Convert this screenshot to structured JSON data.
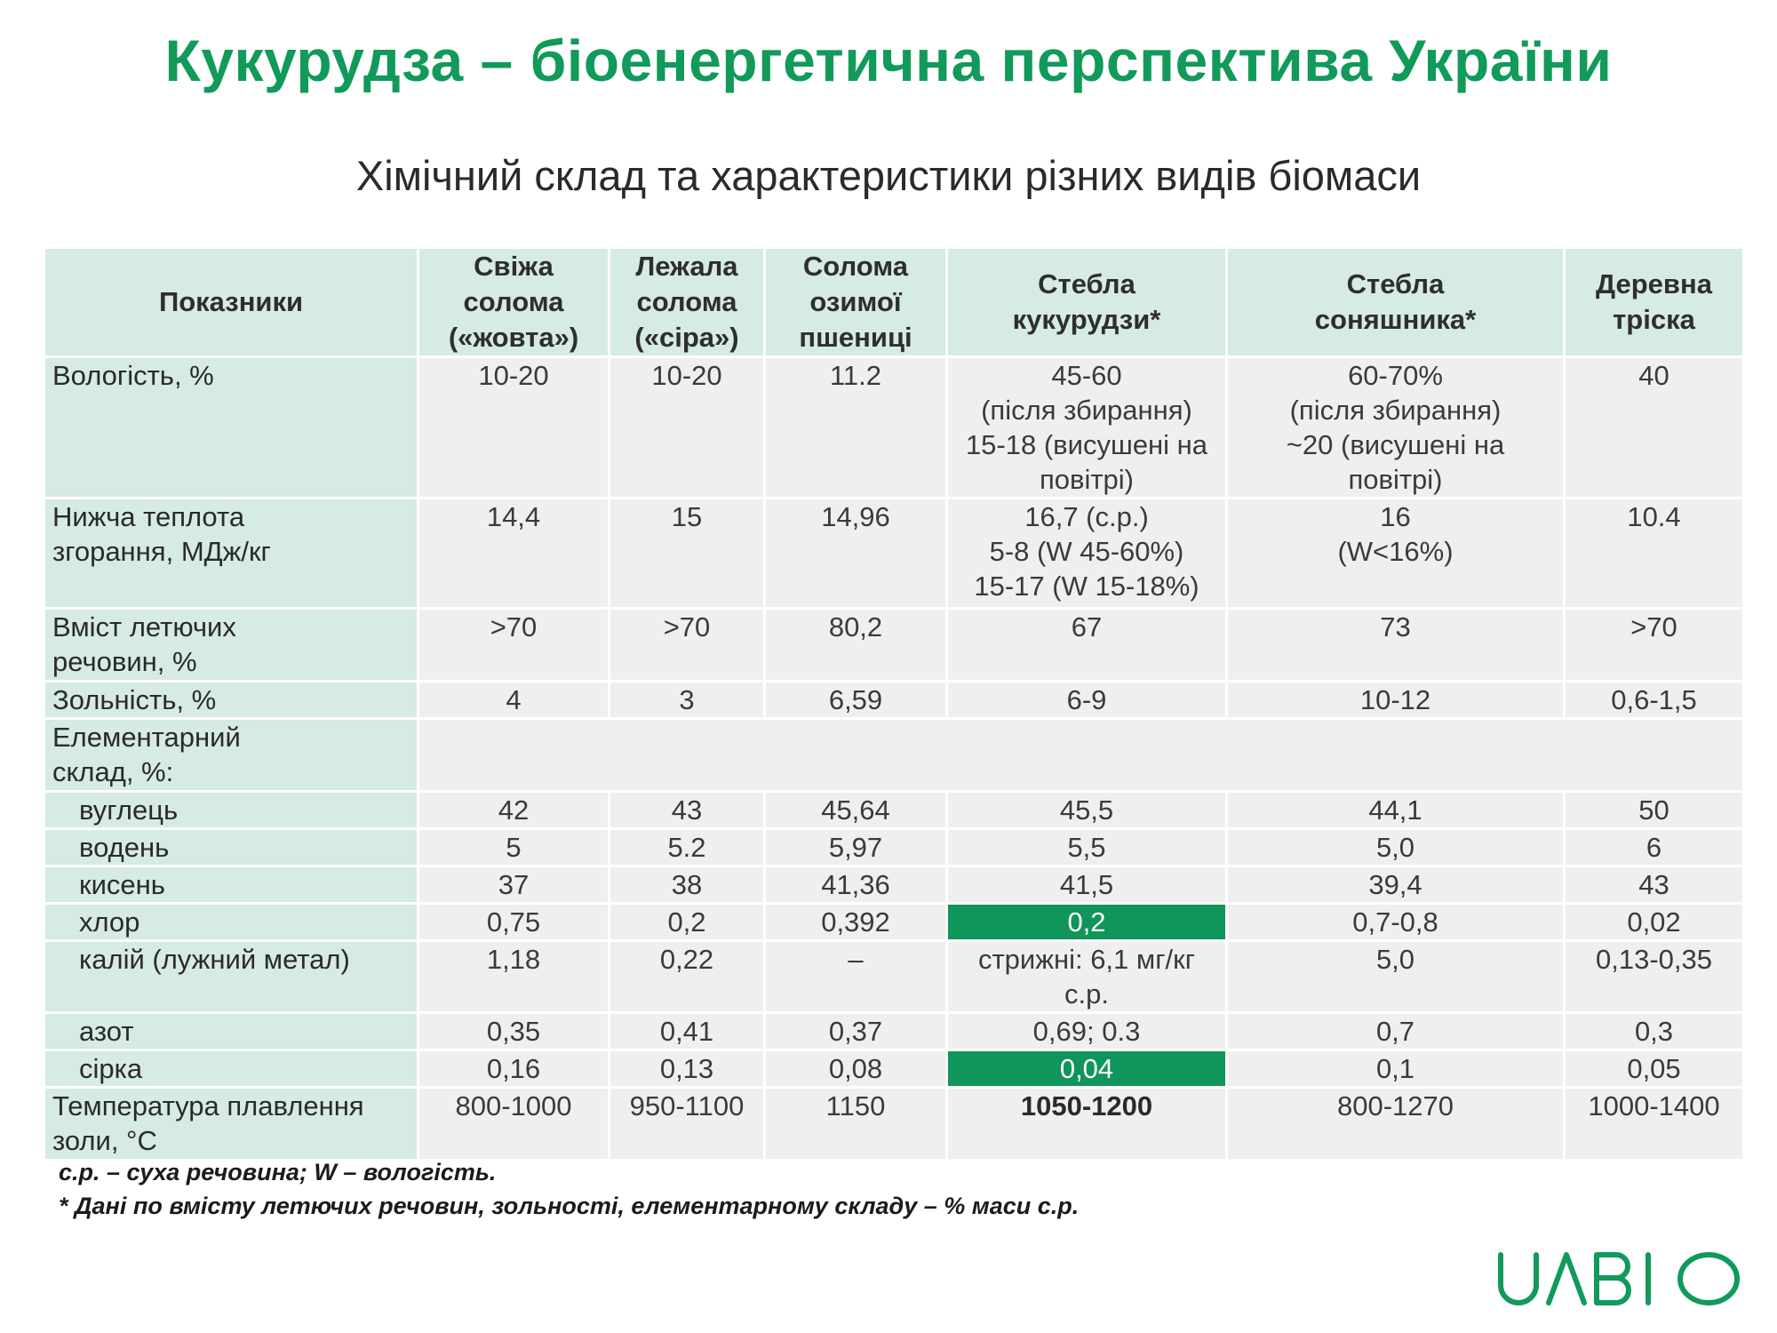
{
  "title": "Кукурудза – біоенергетична перспектива України",
  "subtitle": "Хімічний склад та характеристики різних видів біомаси",
  "table": {
    "headers": [
      {
        "lines": [
          "Показники"
        ]
      },
      {
        "lines": [
          "Свіжа",
          "солома",
          "(«жовта»)"
        ]
      },
      {
        "lines": [
          "Лежала",
          "солома",
          "(«сіра»)"
        ]
      },
      {
        "lines": [
          "Солома",
          "озимої",
          "пшениці"
        ]
      },
      {
        "lines": [
          "Стебла",
          "кукурудзи*"
        ]
      },
      {
        "lines": [
          "Стебла",
          "соняшника*"
        ]
      },
      {
        "lines": [
          "Деревна",
          "тріска"
        ]
      }
    ],
    "rows": [
      {
        "label": [
          "Вологість, %"
        ],
        "sub": false,
        "cells": [
          {
            "lines": [
              "10-20"
            ]
          },
          {
            "lines": [
              "10-20"
            ]
          },
          {
            "lines": [
              "11.2"
            ]
          },
          {
            "lines": [
              "45-60",
              "(після збирання)",
              "15-18 (висушені на",
              "повітрі)"
            ]
          },
          {
            "lines": [
              "60-70%",
              "(після збирання)",
              "~20 (висушені на",
              "повітрі)"
            ]
          },
          {
            "lines": [
              "40"
            ]
          }
        ]
      },
      {
        "label": [
          "Нижча теплота",
          "згорання, МДж/кг"
        ],
        "sub": false,
        "cells": [
          {
            "lines": [
              "14,4"
            ]
          },
          {
            "lines": [
              "15"
            ]
          },
          {
            "lines": [
              "14,96"
            ]
          },
          {
            "lines": [
              "16,7 (с.р.)",
              "5-8 (W 45-60%)",
              "15-17 (W 15-18%)"
            ]
          },
          {
            "lines": [
              "16",
              "(W<16%)"
            ]
          },
          {
            "lines": [
              "10.4"
            ]
          }
        ]
      },
      {
        "label": [
          "Вміст летючих",
          "речовин, %"
        ],
        "sub": false,
        "cells": [
          {
            "lines": [
              ">70"
            ]
          },
          {
            "lines": [
              ">70"
            ]
          },
          {
            "lines": [
              "80,2"
            ]
          },
          {
            "lines": [
              "67"
            ]
          },
          {
            "lines": [
              "73"
            ]
          },
          {
            "lines": [
              ">70"
            ]
          }
        ]
      },
      {
        "label": [
          "Зольність, %"
        ],
        "sub": false,
        "cells": [
          {
            "lines": [
              "4"
            ]
          },
          {
            "lines": [
              "3"
            ]
          },
          {
            "lines": [
              "6,59"
            ]
          },
          {
            "lines": [
              "6-9"
            ]
          },
          {
            "lines": [
              "10-12"
            ]
          },
          {
            "lines": [
              "0,6-1,5"
            ]
          }
        ]
      },
      {
        "label": [
          "Елементарний",
          "склад, %:"
        ],
        "sub": false,
        "span": true
      },
      {
        "label": [
          "вуглець"
        ],
        "sub": true,
        "cells": [
          {
            "lines": [
              "42"
            ]
          },
          {
            "lines": [
              "43"
            ]
          },
          {
            "lines": [
              "45,64"
            ]
          },
          {
            "lines": [
              "45,5"
            ]
          },
          {
            "lines": [
              "44,1"
            ]
          },
          {
            "lines": [
              "50"
            ]
          }
        ]
      },
      {
        "label": [
          "водень"
        ],
        "sub": true,
        "cells": [
          {
            "lines": [
              "5"
            ]
          },
          {
            "lines": [
              "5.2"
            ]
          },
          {
            "lines": [
              "5,97"
            ]
          },
          {
            "lines": [
              "5,5"
            ]
          },
          {
            "lines": [
              "5,0"
            ]
          },
          {
            "lines": [
              "6"
            ]
          }
        ]
      },
      {
        "label": [
          "кисень"
        ],
        "sub": true,
        "cells": [
          {
            "lines": [
              "37"
            ]
          },
          {
            "lines": [
              "38"
            ]
          },
          {
            "lines": [
              "41,36"
            ]
          },
          {
            "lines": [
              "41,5"
            ]
          },
          {
            "lines": [
              "39,4"
            ]
          },
          {
            "lines": [
              "43"
            ]
          }
        ]
      },
      {
        "label": [
          "хлор"
        ],
        "sub": true,
        "cells": [
          {
            "lines": [
              "0,75"
            ]
          },
          {
            "lines": [
              "0,2"
            ]
          },
          {
            "lines": [
              "0,392"
            ]
          },
          {
            "lines": [
              "0,2"
            ],
            "highlight": true
          },
          {
            "lines": [
              "0,7-0,8"
            ]
          },
          {
            "lines": [
              "0,02"
            ]
          }
        ]
      },
      {
        "label": [
          "калій (лужний метал)"
        ],
        "sub": true,
        "cells": [
          {
            "lines": [
              "1,18"
            ]
          },
          {
            "lines": [
              "0,22"
            ]
          },
          {
            "lines": [
              "–"
            ]
          },
          {
            "lines": [
              "стрижні: 6,1 мг/кг",
              "с.р."
            ]
          },
          {
            "lines": [
              "5,0"
            ]
          },
          {
            "lines": [
              "0,13-0,35"
            ]
          }
        ]
      },
      {
        "label": [
          "азот"
        ],
        "sub": true,
        "cells": [
          {
            "lines": [
              "0,35"
            ]
          },
          {
            "lines": [
              "0,41"
            ]
          },
          {
            "lines": [
              "0,37"
            ]
          },
          {
            "lines": [
              "0,69; 0.3"
            ]
          },
          {
            "lines": [
              "0,7"
            ]
          },
          {
            "lines": [
              "0,3"
            ]
          }
        ]
      },
      {
        "label": [
          "сірка"
        ],
        "sub": true,
        "cells": [
          {
            "lines": [
              "0,16"
            ]
          },
          {
            "lines": [
              "0,13"
            ]
          },
          {
            "lines": [
              "0,08"
            ]
          },
          {
            "lines": [
              "0,04"
            ],
            "highlight": true
          },
          {
            "lines": [
              "0,1"
            ]
          },
          {
            "lines": [
              "0,05"
            ]
          }
        ]
      },
      {
        "label": [
          "Температура плавлення",
          "золи, °С"
        ],
        "sub": false,
        "cells": [
          {
            "lines": [
              "800-1000"
            ]
          },
          {
            "lines": [
              "950-1100"
            ]
          },
          {
            "lines": [
              "1150"
            ]
          },
          {
            "lines": [
              "1050-1200"
            ],
            "bold": true
          },
          {
            "lines": [
              "800-1270"
            ]
          },
          {
            "lines": [
              "1000-1400"
            ]
          }
        ]
      }
    ]
  },
  "notes": [
    "с.р. – суха речовина; W – вологість.",
    "* Дані по вмісту летючих речовин, зольності, елементарному складу – % маси с.р."
  ],
  "logo": {
    "text": "UABIO",
    "color": "#119a5a"
  },
  "colors": {
    "accent": "#119a5a",
    "header_bg": "#d6ebe2",
    "cell_bg": "#efefef",
    "highlight": "#10955a"
  }
}
